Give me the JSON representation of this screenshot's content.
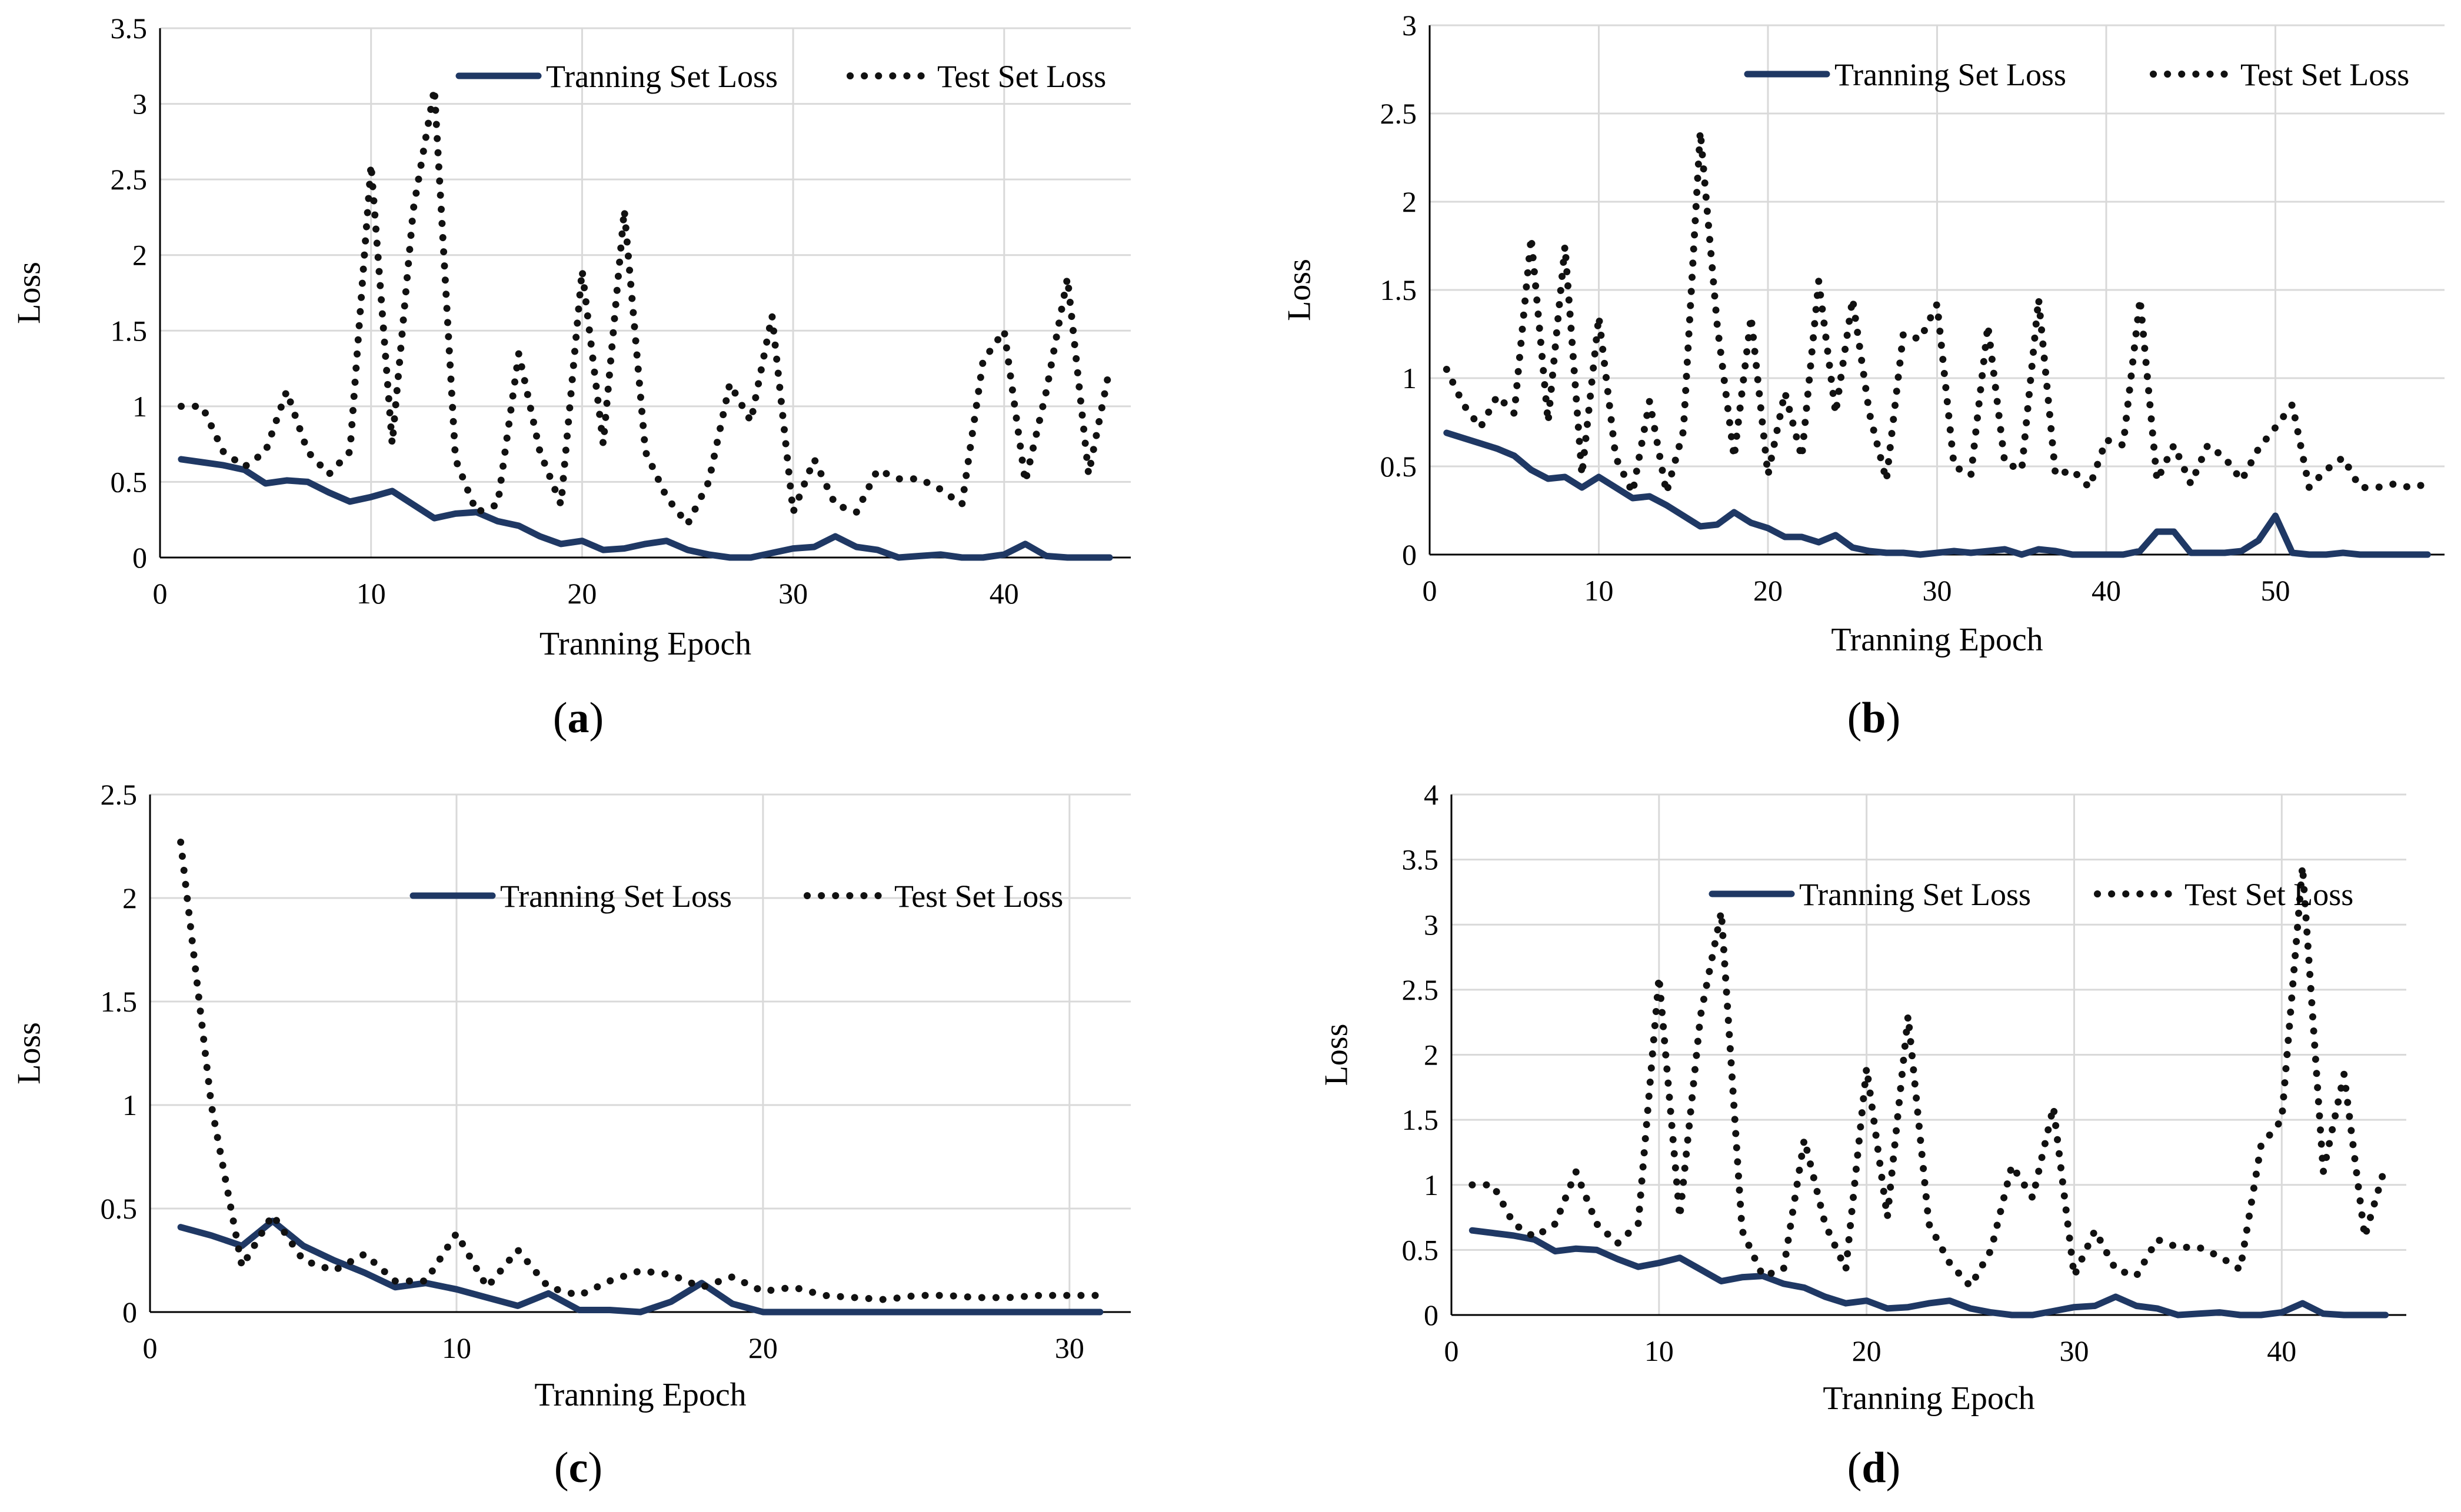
{
  "chart_data": [
    {
      "type": "line",
      "caption": "a",
      "xlabel": "Tranning Epoch",
      "ylabel": "Loss",
      "xlim": [
        0,
        46
      ],
      "ylim": [
        0,
        3.5
      ],
      "xticks": [
        0,
        10,
        20,
        30,
        40
      ],
      "yticks": [
        0,
        0.5,
        1,
        1.5,
        2,
        2.5,
        3,
        3.5
      ],
      "ytick_labels": [
        "0",
        "0.5",
        "1",
        "1.5",
        "2",
        "2.5",
        "3",
        "3.5"
      ],
      "grid": true,
      "legend": "top",
      "series": [
        {
          "name": "Tranning Set Loss",
          "style": "solid",
          "x": [
            1,
            2,
            3,
            4,
            5,
            6,
            7,
            8,
            9,
            10,
            11,
            12,
            13,
            14,
            15,
            16,
            17,
            18,
            19,
            20,
            21,
            22,
            23,
            24,
            25,
            26,
            27,
            28,
            29,
            30,
            31,
            32,
            33,
            34,
            35,
            36,
            37,
            38,
            39,
            40,
            41,
            42,
            43,
            44,
            45
          ],
          "values": [
            0.65,
            0.63,
            0.61,
            0.58,
            0.49,
            0.51,
            0.5,
            0.43,
            0.37,
            0.4,
            0.44,
            0.35,
            0.26,
            0.29,
            0.3,
            0.24,
            0.21,
            0.14,
            0.09,
            0.11,
            0.05,
            0.06,
            0.09,
            0.11,
            0.05,
            0.02,
            0.0,
            0.0,
            0.03,
            0.06,
            0.07,
            0.14,
            0.07,
            0.05,
            0.0,
            0.01,
            0.02,
            0.0,
            0.0,
            0.02,
            0.09,
            0.01,
            0.0,
            0.0,
            0.0
          ]
        },
        {
          "name": "Test Set Loss",
          "style": "dotted",
          "x": [
            1,
            2,
            3,
            4,
            5,
            6,
            7,
            8,
            9,
            10,
            11,
            12,
            13,
            14,
            15,
            16,
            17,
            18,
            19,
            20,
            21,
            22,
            23,
            24,
            25,
            26,
            27,
            28,
            29,
            30,
            31,
            32,
            33,
            34,
            35,
            36,
            37,
            38,
            39,
            40,
            41,
            42,
            43,
            44,
            45
          ],
          "values": [
            1.0,
            1.0,
            0.7,
            0.6,
            0.7,
            1.1,
            0.7,
            0.55,
            0.7,
            2.6,
            0.75,
            2.3,
            3.1,
            0.65,
            0.3,
            0.35,
            1.35,
            0.7,
            0.35,
            1.9,
            0.75,
            2.3,
            0.7,
            0.4,
            0.22,
            0.5,
            1.15,
            0.9,
            1.6,
            0.3,
            0.65,
            0.35,
            0.3,
            0.58,
            0.52,
            0.52,
            0.45,
            0.35,
            1.3,
            1.5,
            0.5,
            1.1,
            1.85,
            0.55,
            1.25
          ]
        }
      ]
    },
    {
      "type": "line",
      "caption": "b",
      "xlabel": "Tranning Epoch",
      "ylabel": "Loss",
      "xlim": [
        0,
        60
      ],
      "ylim": [
        0,
        3
      ],
      "xticks": [
        0,
        10,
        20,
        30,
        40,
        50
      ],
      "yticks": [
        0,
        0.5,
        1,
        1.5,
        2,
        2.5,
        3
      ],
      "ytick_labels": [
        "0",
        "0.5",
        "1",
        "1.5",
        "2",
        "2.5",
        "3"
      ],
      "grid": true,
      "legend": "top",
      "series": [
        {
          "name": "Tranning Set Loss",
          "style": "solid",
          "x": [
            1,
            2,
            3,
            4,
            5,
            6,
            7,
            8,
            9,
            10,
            11,
            12,
            13,
            14,
            15,
            16,
            17,
            18,
            19,
            20,
            21,
            22,
            23,
            24,
            25,
            26,
            27,
            28,
            29,
            30,
            31,
            32,
            33,
            34,
            35,
            36,
            37,
            38,
            39,
            40,
            41,
            42,
            43,
            44,
            45,
            46,
            47,
            48,
            49,
            50,
            51,
            52,
            53,
            54,
            55,
            56,
            57,
            58,
            59
          ],
          "values": [
            0.69,
            0.66,
            0.63,
            0.6,
            0.56,
            0.48,
            0.43,
            0.44,
            0.38,
            0.44,
            0.38,
            0.32,
            0.33,
            0.28,
            0.22,
            0.16,
            0.17,
            0.24,
            0.18,
            0.15,
            0.1,
            0.1,
            0.07,
            0.11,
            0.04,
            0.02,
            0.01,
            0.01,
            0.0,
            0.01,
            0.02,
            0.01,
            0.02,
            0.03,
            0.0,
            0.03,
            0.02,
            0.0,
            0.0,
            0.0,
            0.0,
            0.02,
            0.13,
            0.13,
            0.01,
            0.01,
            0.01,
            0.02,
            0.08,
            0.22,
            0.01,
            0.0,
            0.0,
            0.01,
            0.0,
            0.0,
            0.0,
            0.0,
            0.0
          ]
        },
        {
          "name": "Test Set Loss",
          "style": "dotted",
          "x": [
            1,
            2,
            3,
            4,
            5,
            6,
            7,
            8,
            9,
            10,
            11,
            12,
            13,
            14,
            15,
            16,
            17,
            18,
            19,
            20,
            21,
            22,
            23,
            24,
            25,
            26,
            27,
            28,
            29,
            30,
            31,
            32,
            33,
            34,
            35,
            36,
            37,
            38,
            39,
            40,
            41,
            42,
            43,
            44,
            45,
            46,
            47,
            48,
            49,
            50,
            51,
            52,
            53,
            54,
            55,
            56,
            57,
            58,
            59
          ],
          "values": [
            1.05,
            0.85,
            0.72,
            0.9,
            0.8,
            1.8,
            0.75,
            1.75,
            0.45,
            1.35,
            0.55,
            0.35,
            0.87,
            0.35,
            0.7,
            2.4,
            1.3,
            0.55,
            1.35,
            0.45,
            0.92,
            0.55,
            1.55,
            0.8,
            1.45,
            0.8,
            0.42,
            1.25,
            1.22,
            1.42,
            0.5,
            0.45,
            1.3,
            0.52,
            0.48,
            1.45,
            0.45,
            0.48,
            0.38,
            0.65,
            0.62,
            1.45,
            0.42,
            0.62,
            0.4,
            0.62,
            0.55,
            0.42,
            0.6,
            0.72,
            0.85,
            0.38,
            0.48,
            0.55,
            0.38,
            0.38,
            0.4,
            0.38,
            0.4
          ]
        }
      ]
    },
    {
      "type": "line",
      "caption": "c",
      "xlabel": "Tranning Epoch",
      "ylabel": "Loss",
      "xlim": [
        0,
        32
      ],
      "ylim": [
        0,
        2.5
      ],
      "xticks": [
        0,
        10,
        20,
        30
      ],
      "yticks": [
        0,
        0.5,
        1,
        1.5,
        2,
        2.5
      ],
      "ytick_labels": [
        "0",
        "0.5",
        "1",
        "1.5",
        "2",
        "2.5"
      ],
      "grid": true,
      "legend": "top",
      "series": [
        {
          "name": "Tranning Set Loss",
          "style": "solid",
          "x": [
            1,
            2,
            3,
            4,
            5,
            6,
            7,
            8,
            9,
            10,
            11,
            12,
            13,
            14,
            15,
            16,
            17,
            18,
            19,
            20,
            21,
            22,
            23,
            24,
            25,
            26,
            27,
            28,
            29,
            30,
            31
          ],
          "values": [
            0.41,
            0.37,
            0.32,
            0.44,
            0.32,
            0.25,
            0.19,
            0.12,
            0.14,
            0.11,
            0.07,
            0.03,
            0.09,
            0.01,
            0.01,
            0.0,
            0.05,
            0.14,
            0.04,
            0.0,
            0.0,
            0.0,
            0.0,
            0.0,
            0.0,
            0.0,
            0.0,
            0.0,
            0.0,
            0.0,
            0.0
          ]
        },
        {
          "name": "Test Set Loss",
          "style": "dotted",
          "x": [
            1,
            2,
            3,
            4,
            5,
            6,
            7,
            8,
            9,
            10,
            11,
            12,
            13,
            14,
            15,
            16,
            17,
            18,
            19,
            20,
            21,
            22,
            23,
            24,
            25,
            26,
            27,
            28,
            29,
            30,
            31
          ],
          "values": [
            2.27,
            1.0,
            0.22,
            0.47,
            0.25,
            0.2,
            0.28,
            0.15,
            0.15,
            0.38,
            0.12,
            0.3,
            0.12,
            0.08,
            0.15,
            0.2,
            0.18,
            0.12,
            0.17,
            0.1,
            0.12,
            0.08,
            0.07,
            0.06,
            0.08,
            0.08,
            0.07,
            0.07,
            0.08,
            0.08,
            0.08
          ]
        }
      ]
    },
    {
      "type": "line",
      "caption": "d",
      "xlabel": "Tranning Epoch",
      "ylabel": "Loss",
      "xlim": [
        0,
        46
      ],
      "ylim": [
        0,
        4
      ],
      "xticks": [
        0,
        10,
        20,
        30,
        40
      ],
      "yticks": [
        0,
        0.5,
        1,
        1.5,
        2,
        2.5,
        3,
        3.5,
        4
      ],
      "ytick_labels": [
        "0",
        "0.5",
        "1",
        "1.5",
        "2",
        "2.5",
        "3",
        "3.5",
        "4"
      ],
      "grid": true,
      "legend": "top",
      "series": [
        {
          "name": "Tranning Set Loss",
          "style": "solid",
          "x": [
            1,
            2,
            3,
            4,
            5,
            6,
            7,
            8,
            9,
            10,
            11,
            12,
            13,
            14,
            15,
            16,
            17,
            18,
            19,
            20,
            21,
            22,
            23,
            24,
            25,
            26,
            27,
            28,
            29,
            30,
            31,
            32,
            33,
            34,
            35,
            36,
            37,
            38,
            39,
            40,
            41,
            42,
            43,
            44,
            45
          ],
          "values": [
            0.65,
            0.63,
            0.61,
            0.58,
            0.49,
            0.51,
            0.5,
            0.43,
            0.37,
            0.4,
            0.44,
            0.35,
            0.26,
            0.29,
            0.3,
            0.24,
            0.21,
            0.14,
            0.09,
            0.11,
            0.05,
            0.06,
            0.09,
            0.11,
            0.05,
            0.02,
            0.0,
            0.0,
            0.03,
            0.06,
            0.07,
            0.14,
            0.07,
            0.05,
            0.0,
            0.01,
            0.02,
            0.0,
            0.0,
            0.02,
            0.09,
            0.01,
            0.0,
            0.0,
            0.0
          ]
        },
        {
          "name": "Test Set Loss",
          "style": "dotted",
          "x": [
            1,
            2,
            3,
            4,
            5,
            6,
            7,
            8,
            9,
            10,
            11,
            12,
            13,
            14,
            15,
            16,
            17,
            18,
            19,
            20,
            21,
            22,
            23,
            24,
            25,
            26,
            27,
            28,
            29,
            30,
            31,
            32,
            33,
            34,
            35,
            36,
            37,
            38,
            39,
            40,
            41,
            42,
            43,
            44,
            45
          ],
          "values": [
            1.0,
            1.0,
            0.7,
            0.6,
            0.7,
            1.1,
            0.7,
            0.55,
            0.7,
            2.6,
            0.75,
            2.3,
            3.1,
            0.65,
            0.3,
            0.35,
            1.35,
            0.7,
            0.35,
            1.9,
            0.75,
            2.3,
            0.7,
            0.4,
            0.22,
            0.5,
            1.15,
            0.9,
            1.6,
            0.3,
            0.65,
            0.35,
            0.3,
            0.58,
            0.52,
            0.52,
            0.45,
            0.35,
            1.3,
            1.5,
            3.45,
            1.1,
            1.85,
            0.6,
            1.15
          ]
        }
      ]
    }
  ]
}
